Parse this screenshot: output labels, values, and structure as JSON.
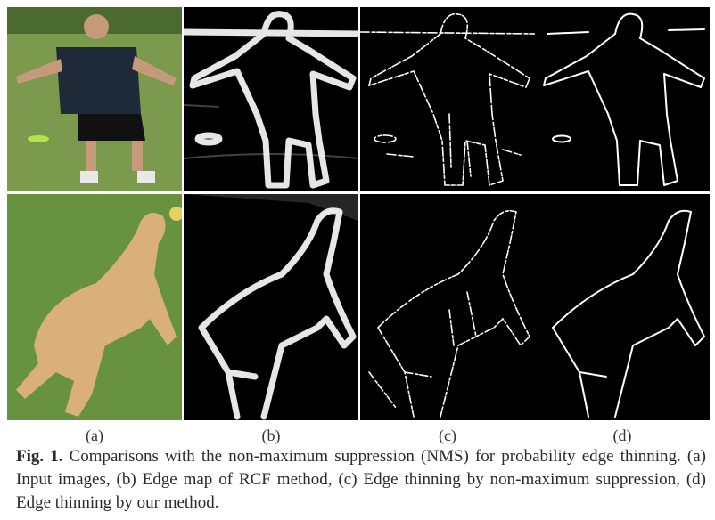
{
  "figure": {
    "panel_labels": [
      "(a)",
      "(b)",
      "(c)",
      "(d)"
    ],
    "caption": {
      "prefix": "Fig. 1.",
      "text": " Comparisons with the non-maximum suppression (NMS) for probability edge thinning. (a) Input images, (b) Edge map of RCF method, (c) Edge thinning by non-maximum suppression, (d) Edge thinning by our method."
    },
    "colors": {
      "grass": "#5f8a3a",
      "sky_grass": "#7aa24a",
      "shirt": "#1f2a38",
      "skin": "#c49a7a",
      "dog": "#d9b07a",
      "frisbee": "#a8e04a"
    }
  }
}
